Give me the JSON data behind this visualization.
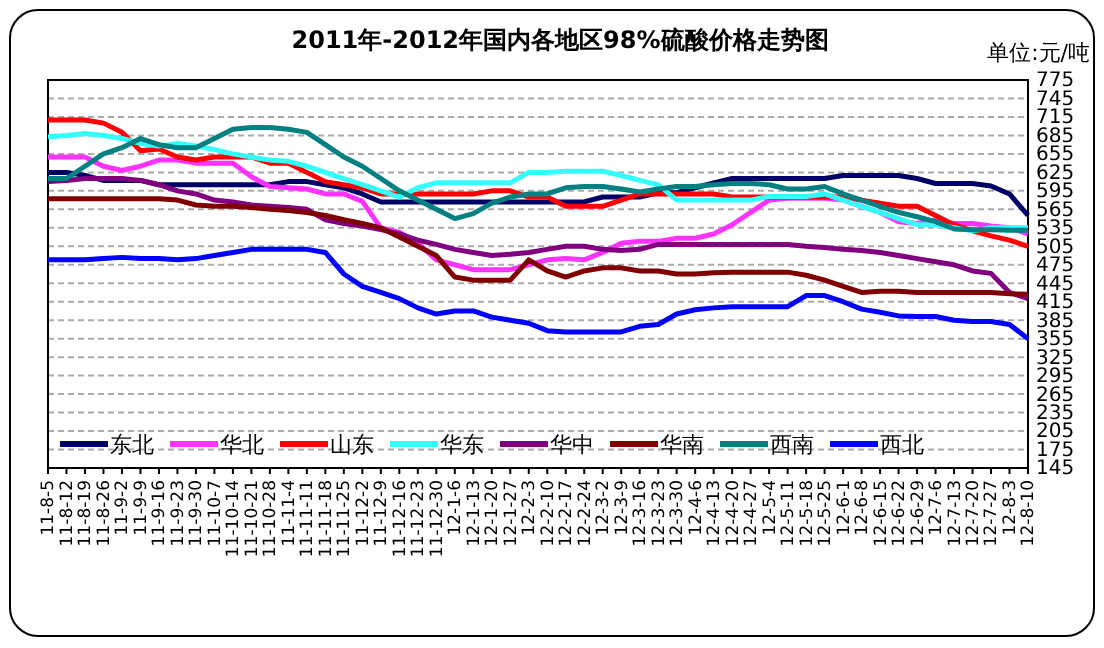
{
  "chart_data": {
    "type": "line",
    "title": "2011年-2012年国内各地区98%硫酸价格走势图",
    "annotations": [
      "单位:元/吨"
    ],
    "categories": [
      "11-8-5",
      "11-8-12",
      "11-8-19",
      "11-8-26",
      "11-9-2",
      "11-9-9",
      "11-9-16",
      "11-9-23",
      "11-9-30",
      "11-10-7",
      "11-10-14",
      "11-10-21",
      "11-10-28",
      "11-11-4",
      "11-11-11",
      "11-11-18",
      "11-11-25",
      "11-12-2",
      "11-12-9",
      "11-12-16",
      "11-12-23",
      "11-12-30",
      "12-1-6",
      "12-1-13",
      "12-1-20",
      "12-1-27",
      "12-2-3",
      "12-2-10",
      "12-2-17",
      "12-2-24",
      "12-3-2",
      "12-3-9",
      "12-3-16",
      "12-3-23",
      "12-3-30",
      "12-4-6",
      "12-4-13",
      "12-4-20",
      "12-4-27",
      "12-5-4",
      "12-5-11",
      "12-5-18",
      "12-5-25",
      "12-6-1",
      "12-6-8",
      "12-6-15",
      "12-6-22",
      "12-6-29",
      "12-7-6",
      "12-7-13",
      "12-7-20",
      "12-7-27",
      "12-8-3",
      "12-8-10"
    ],
    "series": [
      {
        "name": "东北",
        "color": "#000066",
        "values": [
          625,
          625,
          620,
          612,
          612,
          612,
          605,
          605,
          605,
          605,
          605,
          605,
          605,
          610,
          610,
          605,
          600,
          590,
          577,
          577,
          577,
          577,
          577,
          577,
          577,
          577,
          577,
          577,
          577,
          577,
          585,
          585,
          585,
          592,
          592,
          600,
          608,
          615,
          615,
          615,
          615,
          615,
          615,
          620,
          620,
          620,
          620,
          615,
          607,
          607,
          607,
          603,
          590,
          555
        ]
      },
      {
        "name": "华北",
        "color": "#ff33ff",
        "values": [
          650,
          650,
          650,
          635,
          628,
          635,
          645,
          645,
          640,
          640,
          640,
          618,
          602,
          600,
          598,
          590,
          590,
          578,
          535,
          528,
          510,
          483,
          475,
          467,
          467,
          467,
          475,
          483,
          485,
          483,
          495,
          510,
          513,
          513,
          518,
          518,
          525,
          540,
          560,
          580,
          583,
          583,
          583,
          580,
          570,
          560,
          545,
          542,
          548,
          542,
          542,
          538,
          535,
          525
        ]
      },
      {
        "name": "山东",
        "color": "#ff0000",
        "values": [
          710,
          710,
          710,
          705,
          690,
          660,
          663,
          650,
          645,
          650,
          650,
          650,
          640,
          640,
          625,
          610,
          605,
          600,
          590,
          590,
          590,
          590,
          590,
          590,
          595,
          595,
          585,
          585,
          570,
          570,
          570,
          580,
          590,
          590,
          590,
          590,
          590,
          585,
          585,
          585,
          585,
          585,
          585,
          585,
          580,
          575,
          570,
          570,
          555,
          540,
          530,
          522,
          515,
          505
        ]
      },
      {
        "name": "华东",
        "color": "#33ffff",
        "values": [
          683,
          685,
          688,
          685,
          680,
          672,
          668,
          672,
          668,
          662,
          655,
          650,
          645,
          643,
          635,
          625,
          615,
          605,
          595,
          585,
          600,
          608,
          608,
          608,
          608,
          608,
          625,
          625,
          627,
          627,
          627,
          620,
          612,
          605,
          580,
          580,
          580,
          580,
          580,
          586,
          586,
          586,
          590,
          580,
          570,
          560,
          550,
          540,
          540,
          535,
          530,
          535,
          535,
          535
        ]
      },
      {
        "name": "华中",
        "color": "#800080",
        "values": [
          610,
          612,
          615,
          615,
          615,
          612,
          605,
          595,
          590,
          580,
          577,
          572,
          570,
          568,
          565,
          548,
          542,
          538,
          532,
          525,
          515,
          508,
          500,
          495,
          490,
          492,
          495,
          500,
          505,
          505,
          500,
          498,
          500,
          508,
          508,
          508,
          508,
          508,
          508,
          508,
          508,
          505,
          503,
          500,
          498,
          495,
          490,
          485,
          480,
          475,
          465,
          461,
          430,
          420
        ]
      },
      {
        "name": "华南",
        "color": "#800000",
        "values": [
          582,
          582,
          582,
          582,
          582,
          582,
          582,
          580,
          572,
          570,
          570,
          568,
          565,
          563,
          560,
          555,
          548,
          542,
          535,
          520,
          505,
          490,
          455,
          450,
          450,
          450,
          483,
          465,
          455,
          465,
          470,
          470,
          465,
          465,
          460,
          460,
          462,
          463,
          463,
          463,
          463,
          458,
          450,
          440,
          430,
          432,
          432,
          430,
          430,
          430,
          430,
          430,
          428,
          427
        ]
      },
      {
        "name": "西南",
        "color": "#008080",
        "values": [
          615,
          615,
          635,
          655,
          665,
          680,
          670,
          665,
          665,
          680,
          695,
          698,
          698,
          695,
          690,
          670,
          650,
          635,
          615,
          595,
          580,
          565,
          550,
          558,
          575,
          585,
          590,
          590,
          600,
          602,
          602,
          598,
          593,
          598,
          602,
          602,
          605,
          607,
          607,
          605,
          598,
          598,
          602,
          590,
          580,
          570,
          560,
          553,
          545,
          533,
          532,
          532,
          531,
          531
        ]
      },
      {
        "name": "西北",
        "color": "#0000ff",
        "values": [
          483,
          483,
          483,
          485,
          487,
          485,
          485,
          483,
          485,
          490,
          495,
          500,
          500,
          500,
          500,
          495,
          460,
          440,
          430,
          420,
          405,
          395,
          400,
          400,
          390,
          385,
          380,
          368,
          366,
          366,
          366,
          366,
          375,
          378,
          395,
          402,
          405,
          407,
          407,
          407,
          407,
          425,
          425,
          415,
          403,
          398,
          392,
          391,
          391,
          385,
          383,
          383,
          378,
          355
        ]
      }
    ],
    "ylim": [
      145,
      775
    ],
    "yticks": [
      145,
      175,
      205,
      235,
      265,
      295,
      325,
      355,
      385,
      415,
      445,
      475,
      505,
      535,
      565,
      595,
      625,
      655,
      685,
      715,
      745,
      775
    ],
    "grid": "y",
    "legend": "bottom",
    "line_style": "solid",
    "marker": "none"
  }
}
